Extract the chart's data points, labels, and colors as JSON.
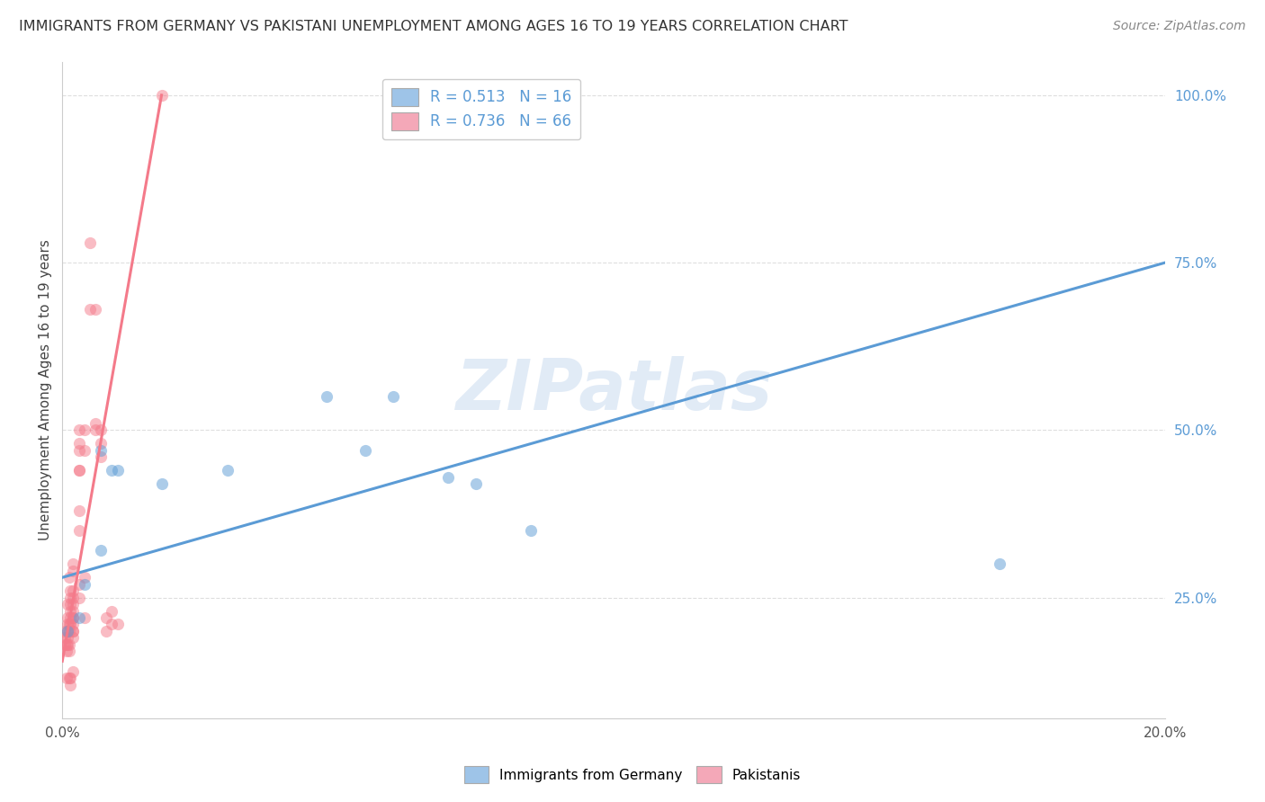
{
  "title": "IMMIGRANTS FROM GERMANY VS PAKISTANI UNEMPLOYMENT AMONG AGES 16 TO 19 YEARS CORRELATION CHART",
  "source": "Source: ZipAtlas.com",
  "ylabel": "Unemployment Among Ages 16 to 19 years",
  "watermark": "ZIPatlas",
  "legend_1_label_r": "R = 0.513",
  "legend_1_label_n": "N = 16",
  "legend_2_label_r": "R = 0.736",
  "legend_2_label_n": "N = 66",
  "legend_1_color": "#9ec4e8",
  "legend_2_color": "#f4a8b8",
  "blue_color": "#5b9bd5",
  "pink_color": "#f47a8a",
  "blue_scatter": [
    [
      0.001,
      0.2
    ],
    [
      0.003,
      0.22
    ],
    [
      0.004,
      0.27
    ],
    [
      0.007,
      0.32
    ],
    [
      0.007,
      0.47
    ],
    [
      0.009,
      0.44
    ],
    [
      0.01,
      0.44
    ],
    [
      0.018,
      0.42
    ],
    [
      0.03,
      0.44
    ],
    [
      0.048,
      0.55
    ],
    [
      0.055,
      0.47
    ],
    [
      0.06,
      0.55
    ],
    [
      0.07,
      0.43
    ],
    [
      0.075,
      0.42
    ],
    [
      0.085,
      0.35
    ],
    [
      0.17,
      0.3
    ]
  ],
  "pink_scatter": [
    [
      0.0005,
      0.18
    ],
    [
      0.0005,
      0.19
    ],
    [
      0.0005,
      0.2
    ],
    [
      0.0008,
      0.18
    ],
    [
      0.0008,
      0.17
    ],
    [
      0.0008,
      0.13
    ],
    [
      0.001,
      0.2
    ],
    [
      0.001,
      0.22
    ],
    [
      0.001,
      0.21
    ],
    [
      0.001,
      0.24
    ],
    [
      0.001,
      0.19
    ],
    [
      0.001,
      0.18
    ],
    [
      0.0013,
      0.2
    ],
    [
      0.0013,
      0.21
    ],
    [
      0.0013,
      0.18
    ],
    [
      0.0013,
      0.17
    ],
    [
      0.0013,
      0.13
    ],
    [
      0.0013,
      0.28
    ],
    [
      0.0015,
      0.26
    ],
    [
      0.0015,
      0.25
    ],
    [
      0.0015,
      0.24
    ],
    [
      0.0015,
      0.23
    ],
    [
      0.0015,
      0.22
    ],
    [
      0.0015,
      0.21
    ],
    [
      0.0015,
      0.13
    ],
    [
      0.0015,
      0.12
    ],
    [
      0.002,
      0.24
    ],
    [
      0.002,
      0.23
    ],
    [
      0.002,
      0.22
    ],
    [
      0.002,
      0.21
    ],
    [
      0.002,
      0.2
    ],
    [
      0.002,
      0.19
    ],
    [
      0.002,
      0.25
    ],
    [
      0.002,
      0.29
    ],
    [
      0.002,
      0.3
    ],
    [
      0.002,
      0.26
    ],
    [
      0.002,
      0.22
    ],
    [
      0.002,
      0.2
    ],
    [
      0.002,
      0.14
    ],
    [
      0.003,
      0.48
    ],
    [
      0.003,
      0.44
    ],
    [
      0.003,
      0.38
    ],
    [
      0.003,
      0.35
    ],
    [
      0.003,
      0.25
    ],
    [
      0.003,
      0.5
    ],
    [
      0.003,
      0.47
    ],
    [
      0.003,
      0.44
    ],
    [
      0.003,
      0.27
    ],
    [
      0.004,
      0.5
    ],
    [
      0.004,
      0.47
    ],
    [
      0.004,
      0.28
    ],
    [
      0.004,
      0.22
    ],
    [
      0.005,
      0.78
    ],
    [
      0.005,
      0.68
    ],
    [
      0.006,
      0.68
    ],
    [
      0.006,
      0.5
    ],
    [
      0.006,
      0.51
    ],
    [
      0.007,
      0.5
    ],
    [
      0.007,
      0.48
    ],
    [
      0.007,
      0.46
    ],
    [
      0.008,
      0.2
    ],
    [
      0.008,
      0.22
    ],
    [
      0.009,
      0.21
    ],
    [
      0.009,
      0.23
    ],
    [
      0.01,
      0.21
    ],
    [
      0.018,
      1.0
    ]
  ],
  "blue_trendline": [
    [
      0.0,
      0.28
    ],
    [
      0.2,
      0.75
    ]
  ],
  "pink_trendline": [
    [
      0.0,
      0.155
    ],
    [
      0.018,
      1.0
    ]
  ],
  "xlim": [
    0.0,
    0.2
  ],
  "ylim": [
    0.07,
    1.05
  ],
  "xticks": [
    0.0,
    0.05,
    0.1,
    0.15,
    0.2
  ],
  "xticklabels": [
    "0.0%",
    "",
    "",
    "",
    "20.0%"
  ],
  "right_yticks": [
    0.25,
    0.5,
    0.75,
    1.0
  ],
  "right_yticklabels": [
    "25.0%",
    "50.0%",
    "75.0%",
    "100.0%"
  ],
  "grid_color": "#dedede",
  "background_color": "#ffffff"
}
